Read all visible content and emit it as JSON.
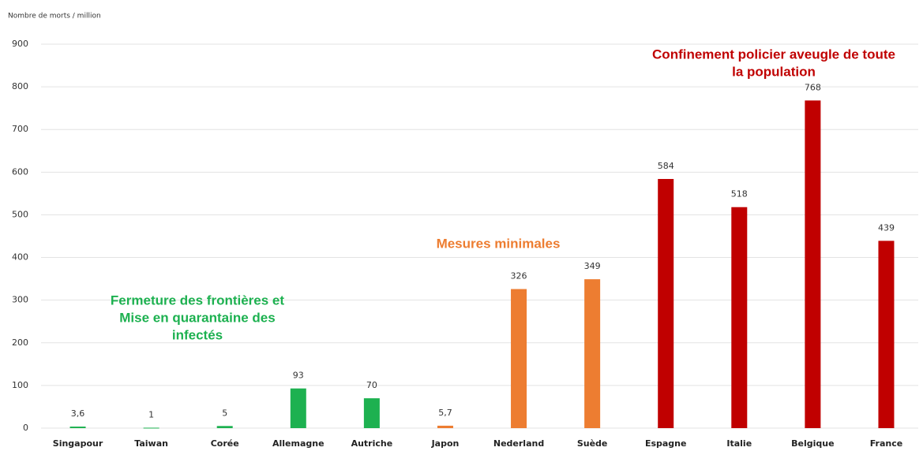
{
  "chart_data": {
    "type": "bar",
    "y_label": "Nombre de morts / million",
    "categories": [
      "Singapour",
      "Taiwan",
      "Corée",
      "Allemagne",
      "Autriche",
      "Japon",
      "Nederland",
      "Suède",
      "Espagne",
      "Italie",
      "Belgique",
      "France"
    ],
    "values": [
      3.6,
      1,
      5,
      93,
      70,
      5.7,
      326,
      349,
      584,
      518,
      768,
      439
    ],
    "value_labels": [
      "3,6",
      "1",
      "5",
      "93",
      "70",
      "5,7",
      "326",
      "349",
      "584",
      "518",
      "768",
      "439"
    ],
    "colors": [
      "#1db150",
      "#1db150",
      "#1db150",
      "#1db150",
      "#1db150",
      "#ed7d31",
      "#ed7d31",
      "#ed7d31",
      "#c00000",
      "#c00000",
      "#c00000",
      "#c00000"
    ],
    "ylim": [
      0,
      900
    ],
    "yticks": [
      0,
      100,
      200,
      300,
      400,
      500,
      600,
      700,
      800,
      900
    ],
    "grid": true,
    "annotations": [
      {
        "lines": [
          "Fermeture des frontières et",
          "Mise en quarantaine des",
          "infectés"
        ],
        "color": "#1db150"
      },
      {
        "lines": [
          "Mesures minimales"
        ],
        "color": "#ed7d31"
      },
      {
        "lines": [
          "Confinement policier aveugle de toute",
          "la population"
        ],
        "color": "#c00000"
      }
    ]
  }
}
